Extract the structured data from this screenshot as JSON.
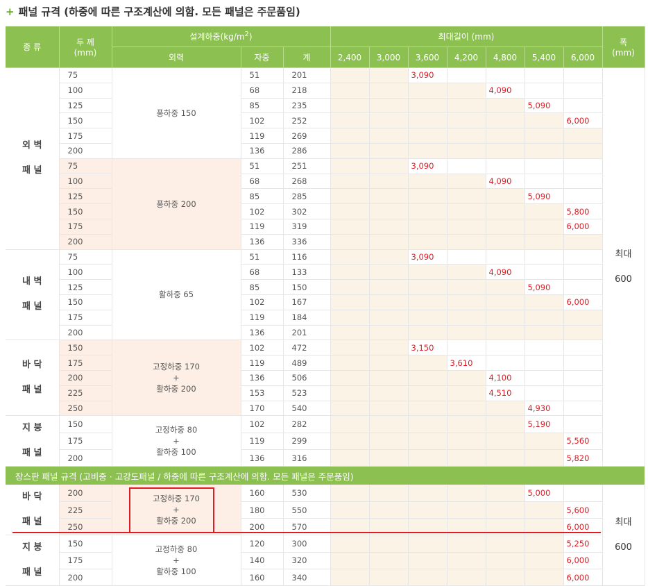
{
  "title": "패널 규격 (하중에 따른 구조계산에 의함.  모든 패널은 주문품임)",
  "header": {
    "type": "종 류",
    "thick_a": "두 께",
    "thick_b": "(mm)",
    "design_load": "설계하중(kg/m²)",
    "external": "외력",
    "self": "자중",
    "sum": "계",
    "maxlen": "최대길이 (mm)",
    "width_a": "폭",
    "width_b": "(mm)",
    "lengths": [
      "2,400",
      "3,000",
      "3,600",
      "4,200",
      "4,800",
      "5,400",
      "6,000"
    ]
  },
  "width_label": {
    "a": "최대",
    "b": "600"
  },
  "sections": [
    {
      "cat": [
        "외 벽",
        "패 널"
      ],
      "groups": [
        {
          "load": [
            "풍하중 150"
          ],
          "rows": [
            {
              "t": "75",
              "s": "51",
              "sum": "201",
              "v": "3,090",
              "col": 2
            },
            {
              "t": "100",
              "s": "68",
              "sum": "218",
              "v": "4,090",
              "col": 4
            },
            {
              "t": "125",
              "s": "85",
              "sum": "235",
              "v": "5,090",
              "col": 5
            },
            {
              "t": "150",
              "s": "102",
              "sum": "252",
              "v": "6,000",
              "col": 6
            },
            {
              "t": "175",
              "s": "119",
              "sum": "269",
              "v": "",
              "col": 6
            },
            {
              "t": "200",
              "s": "136",
              "sum": "286",
              "v": "",
              "col": 6
            }
          ]
        },
        {
          "load": [
            "풍하중 200"
          ],
          "rows": [
            {
              "t": "75",
              "s": "51",
              "sum": "251",
              "v": "3,090",
              "col": 2
            },
            {
              "t": "100",
              "s": "68",
              "sum": "268",
              "v": "4,090",
              "col": 4
            },
            {
              "t": "125",
              "s": "85",
              "sum": "285",
              "v": "5,090",
              "col": 5
            },
            {
              "t": "150",
              "s": "102",
              "sum": "302",
              "v": "5,800",
              "col": 6
            },
            {
              "t": "175",
              "s": "119",
              "sum": "319",
              "v": "6,000",
              "col": 6
            },
            {
              "t": "200",
              "s": "136",
              "sum": "336",
              "v": "",
              "col": 6
            }
          ]
        }
      ]
    },
    {
      "cat": [
        "내 벽",
        "패 널"
      ],
      "groups": [
        {
          "load": [
            "활하중 65"
          ],
          "rows": [
            {
              "t": "75",
              "s": "51",
              "sum": "116",
              "v": "3,090",
              "col": 2
            },
            {
              "t": "100",
              "s": "68",
              "sum": "133",
              "v": "4,090",
              "col": 4
            },
            {
              "t": "125",
              "s": "85",
              "sum": "150",
              "v": "5,090",
              "col": 5
            },
            {
              "t": "150",
              "s": "102",
              "sum": "167",
              "v": "6,000",
              "col": 6
            },
            {
              "t": "175",
              "s": "119",
              "sum": "184",
              "v": "",
              "col": 6
            },
            {
              "t": "200",
              "s": "136",
              "sum": "201",
              "v": "",
              "col": 6
            }
          ]
        }
      ]
    },
    {
      "cat": [
        "바 닥",
        "패 널"
      ],
      "groups": [
        {
          "load": [
            "고정하중 170",
            "+",
            "활하중 200"
          ],
          "rows": [
            {
              "t": "150",
              "s": "102",
              "sum": "472",
              "v": "3,150",
              "col": 2
            },
            {
              "t": "175",
              "s": "119",
              "sum": "489",
              "v": "3,610",
              "col": 3
            },
            {
              "t": "200",
              "s": "136",
              "sum": "506",
              "v": "4,100",
              "col": 4
            },
            {
              "t": "225",
              "s": "153",
              "sum": "523",
              "v": "4,510",
              "col": 4
            },
            {
              "t": "250",
              "s": "170",
              "sum": "540",
              "v": "4,930",
              "col": 5
            }
          ]
        }
      ]
    },
    {
      "cat": [
        "지 붕",
        "패 널"
      ],
      "groups": [
        {
          "load": [
            "고정하중 80",
            "+",
            "활하중 100"
          ],
          "rows": [
            {
              "t": "150",
              "s": "102",
              "sum": "282",
              "v": "5,190",
              "col": 5
            },
            {
              "t": "175",
              "s": "119",
              "sum": "299",
              "v": "5,560",
              "col": 6
            },
            {
              "t": "200",
              "s": "136",
              "sum": "316",
              "v": "5,820",
              "col": 6
            }
          ]
        }
      ]
    }
  ],
  "subtitle": "장스판 패널 규격 (고비중 · 고강도패널  / 하중에 따른 구조계산에 의함. 모든 패널은 주문품임)",
  "long_sections": [
    {
      "cat": [
        "바 닥",
        "패 널"
      ],
      "groups": [
        {
          "load": [
            "고정하중 170",
            "+",
            "활하중 200"
          ],
          "rows": [
            {
              "t": "200",
              "s": "160",
              "sum": "530",
              "v": "5,000",
              "col": 5
            },
            {
              "t": "225",
              "s": "180",
              "sum": "550",
              "v": "5,600",
              "col": 6
            },
            {
              "t": "250",
              "s": "200",
              "sum": "570",
              "v": "6,000",
              "col": 6
            }
          ]
        }
      ]
    },
    {
      "cat": [
        "지 붕",
        "패 널"
      ],
      "groups": [
        {
          "load": [
            "고정하중 80",
            "+",
            "활하중 100"
          ],
          "rows": [
            {
              "t": "150",
              "s": "120",
              "sum": "300",
              "v": "5,250",
              "col": 6
            },
            {
              "t": "175",
              "s": "140",
              "sum": "320",
              "v": "6,000",
              "col": 6
            },
            {
              "t": "200",
              "s": "160",
              "sum": "340",
              "v": "6,000",
              "col": 6
            }
          ]
        }
      ]
    }
  ],
  "colors": {
    "header": "#8cc152",
    "highlight": "#e01b24",
    "pink": "#fdefe6",
    "beige": "#faf3e6"
  }
}
